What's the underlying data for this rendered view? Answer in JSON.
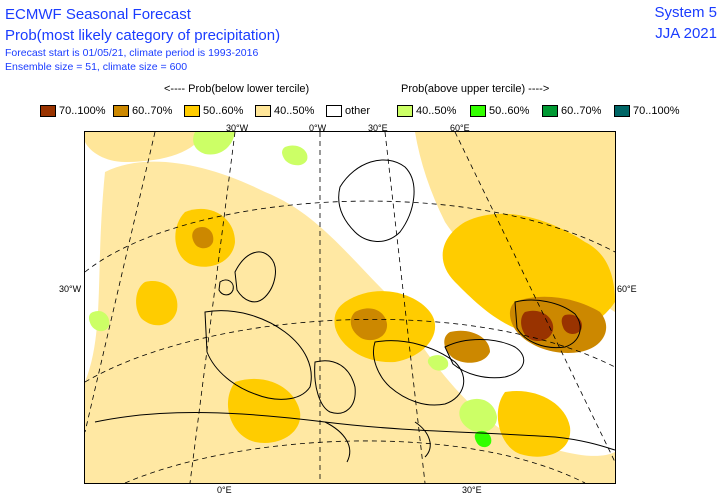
{
  "header": {
    "title": "ECMWF Seasonal Forecast",
    "subtitle": "Prob(most likely category of precipitation)",
    "forecast_line": "Forecast start is 01/05/21, climate period is 1993-2016",
    "ensemble_line": "Ensemble size = 51, climate size = 600",
    "system": "System 5",
    "season": "JJA 2021"
  },
  "legend": {
    "below_heading": "<---- Prob(below lower tercile)",
    "above_heading": "Prob(above upper tercile) ---->",
    "items": [
      {
        "label": "70..100%",
        "color": "#993300"
      },
      {
        "label": "60..70%",
        "color": "#cc8800"
      },
      {
        "label": "50..60%",
        "color": "#ffcc00"
      },
      {
        "label": "40..50%",
        "color": "#ffe699"
      },
      {
        "label": "other",
        "color": "#ffffff"
      },
      {
        "label": "40..50%",
        "color": "#ccff66"
      },
      {
        "label": "50..60%",
        "color": "#33ff00"
      },
      {
        "label": "60..70%",
        "color": "#009933"
      },
      {
        "label": "70..100%",
        "color": "#006666"
      }
    ]
  },
  "axes": {
    "top_ticks": [
      "30°W",
      "0°W",
      "30°E",
      "60°E"
    ],
    "left_tick": "30°W",
    "right_tick": "60°E",
    "bottom_ticks": [
      "0°E",
      "30°E"
    ]
  }
}
